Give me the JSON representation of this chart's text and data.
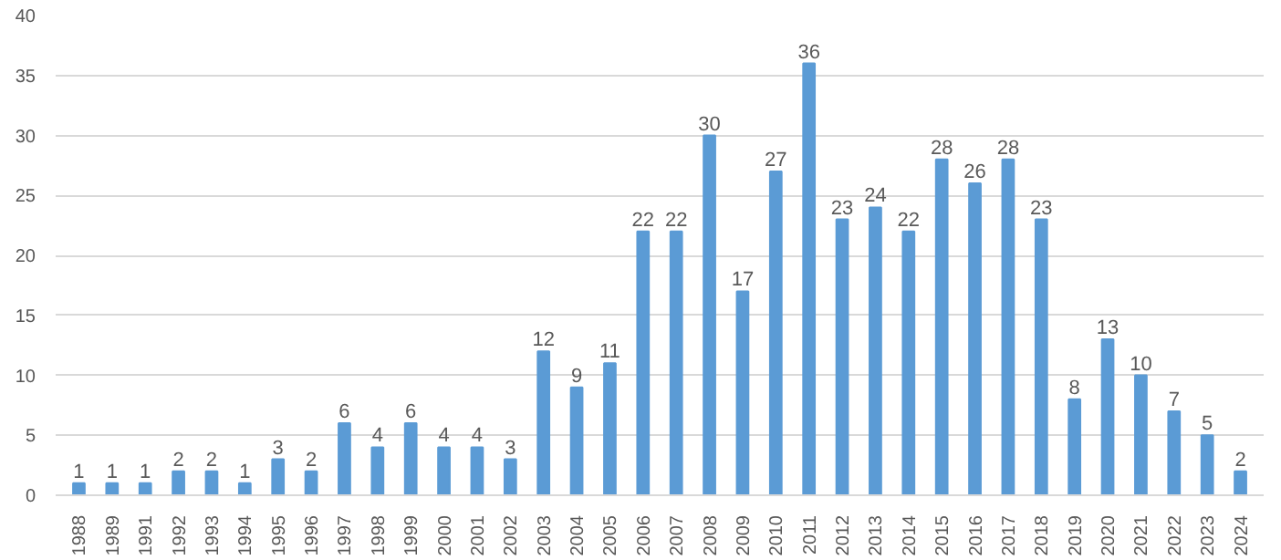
{
  "chart_data": {
    "type": "bar",
    "categories": [
      "1988",
      "1989",
      "1991",
      "1992",
      "1993",
      "1994",
      "1995",
      "1996",
      "1997",
      "1998",
      "1999",
      "2000",
      "2001",
      "2002",
      "2003",
      "2004",
      "2005",
      "2006",
      "2007",
      "2008",
      "2009",
      "2010",
      "2011",
      "2012",
      "2013",
      "2014",
      "2015",
      "2016",
      "2017",
      "2018",
      "2019",
      "2020",
      "2021",
      "2022",
      "2023",
      "2024"
    ],
    "values": [
      1,
      1,
      1,
      2,
      2,
      1,
      3,
      2,
      6,
      4,
      6,
      4,
      4,
      3,
      12,
      9,
      11,
      22,
      22,
      30,
      17,
      27,
      36,
      23,
      24,
      22,
      28,
      26,
      28,
      23,
      8,
      13,
      10,
      7,
      5,
      2
    ],
    "color": "#5b9bd5",
    "ylim": [
      0,
      40
    ],
    "yticks": [
      0,
      5,
      10,
      15,
      20,
      25,
      30,
      35,
      40
    ],
    "grid": "y",
    "data_labels": true
  }
}
